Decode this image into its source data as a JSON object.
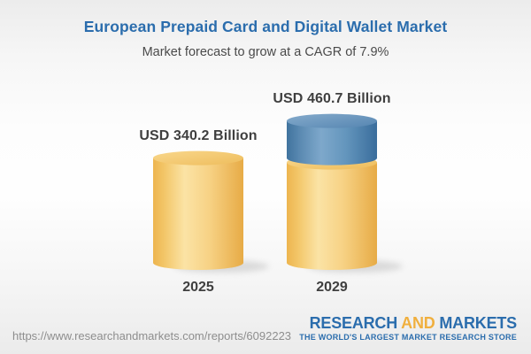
{
  "chart_data": {
    "type": "bar",
    "bar_style": "3d-cylinder",
    "title": "European Prepaid Card and Digital Wallet Market",
    "subtitle": "Market forecast to grow at a CAGR of 7.9%",
    "categories": [
      "2025",
      "2029"
    ],
    "values": [
      340.2,
      460.7
    ],
    "value_labels": [
      "USD 340.2 Billion",
      "USD 460.7 Billion"
    ],
    "unit": "USD Billion",
    "cagr_percent": 7.9,
    "ylim": [
      0,
      500
    ],
    "grid": false,
    "legend": false,
    "series_note": "2029 cylinder is stacked: yellow body equals the 2025 base level (340.2) and the blue cap is the incremental growth to 460.7"
  },
  "footer": {
    "url": "https://www.researchandmarkets.com/reports/6092223",
    "logo": {
      "research": "RESEARCH",
      "and": "AND",
      "markets": "MARKETS",
      "tagline": "THE WORLD'S LARGEST MARKET RESEARCH STORE"
    }
  },
  "colors": {
    "title_blue": "#2b6dad",
    "logo_gold": "#f0af3e",
    "bar_yellow_mid": "#fbe3a5",
    "bar_yellow_edge": "#edb54f",
    "bar_blue_mid": "#7ea8cb",
    "bar_blue_edge": "#3f739f",
    "label_dark": "#3f3f3f",
    "url_gray": "#8e8e8e",
    "background_gray": "#ececec"
  }
}
